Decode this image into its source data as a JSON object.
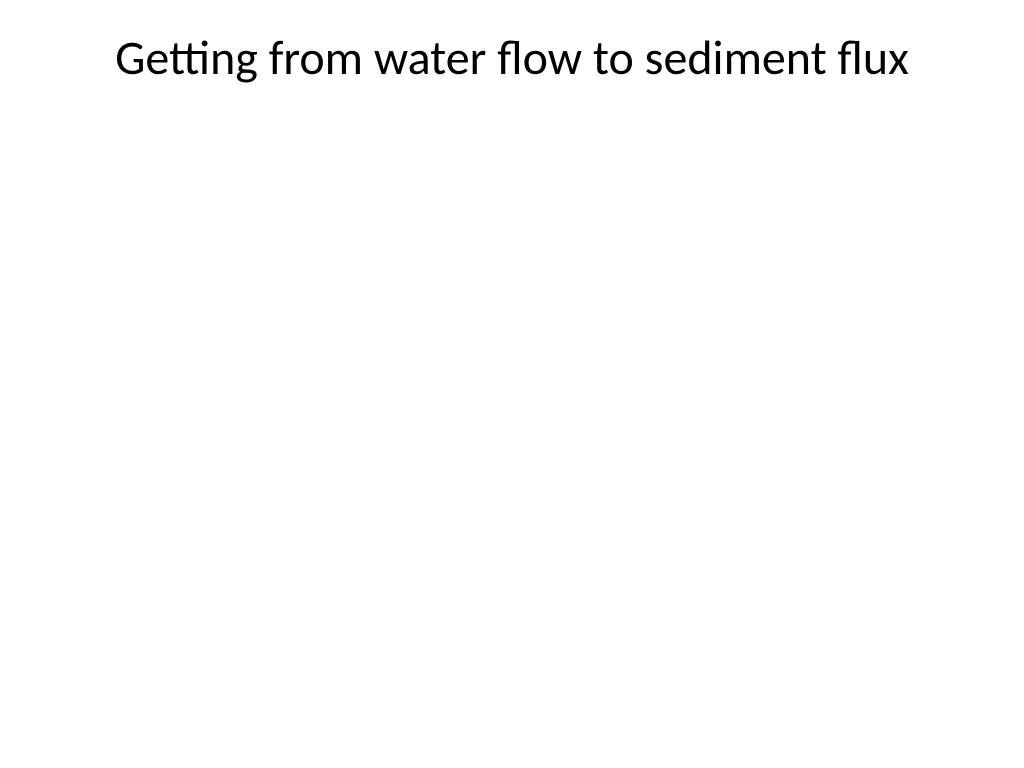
{
  "slide": {
    "title": "Getting from water flow to sediment flux",
    "title_fontsize": 48,
    "title_color": "#000000",
    "title_weight": 400,
    "background_color": "#ffffff",
    "text_align": "center",
    "font_family": "Calibri"
  }
}
